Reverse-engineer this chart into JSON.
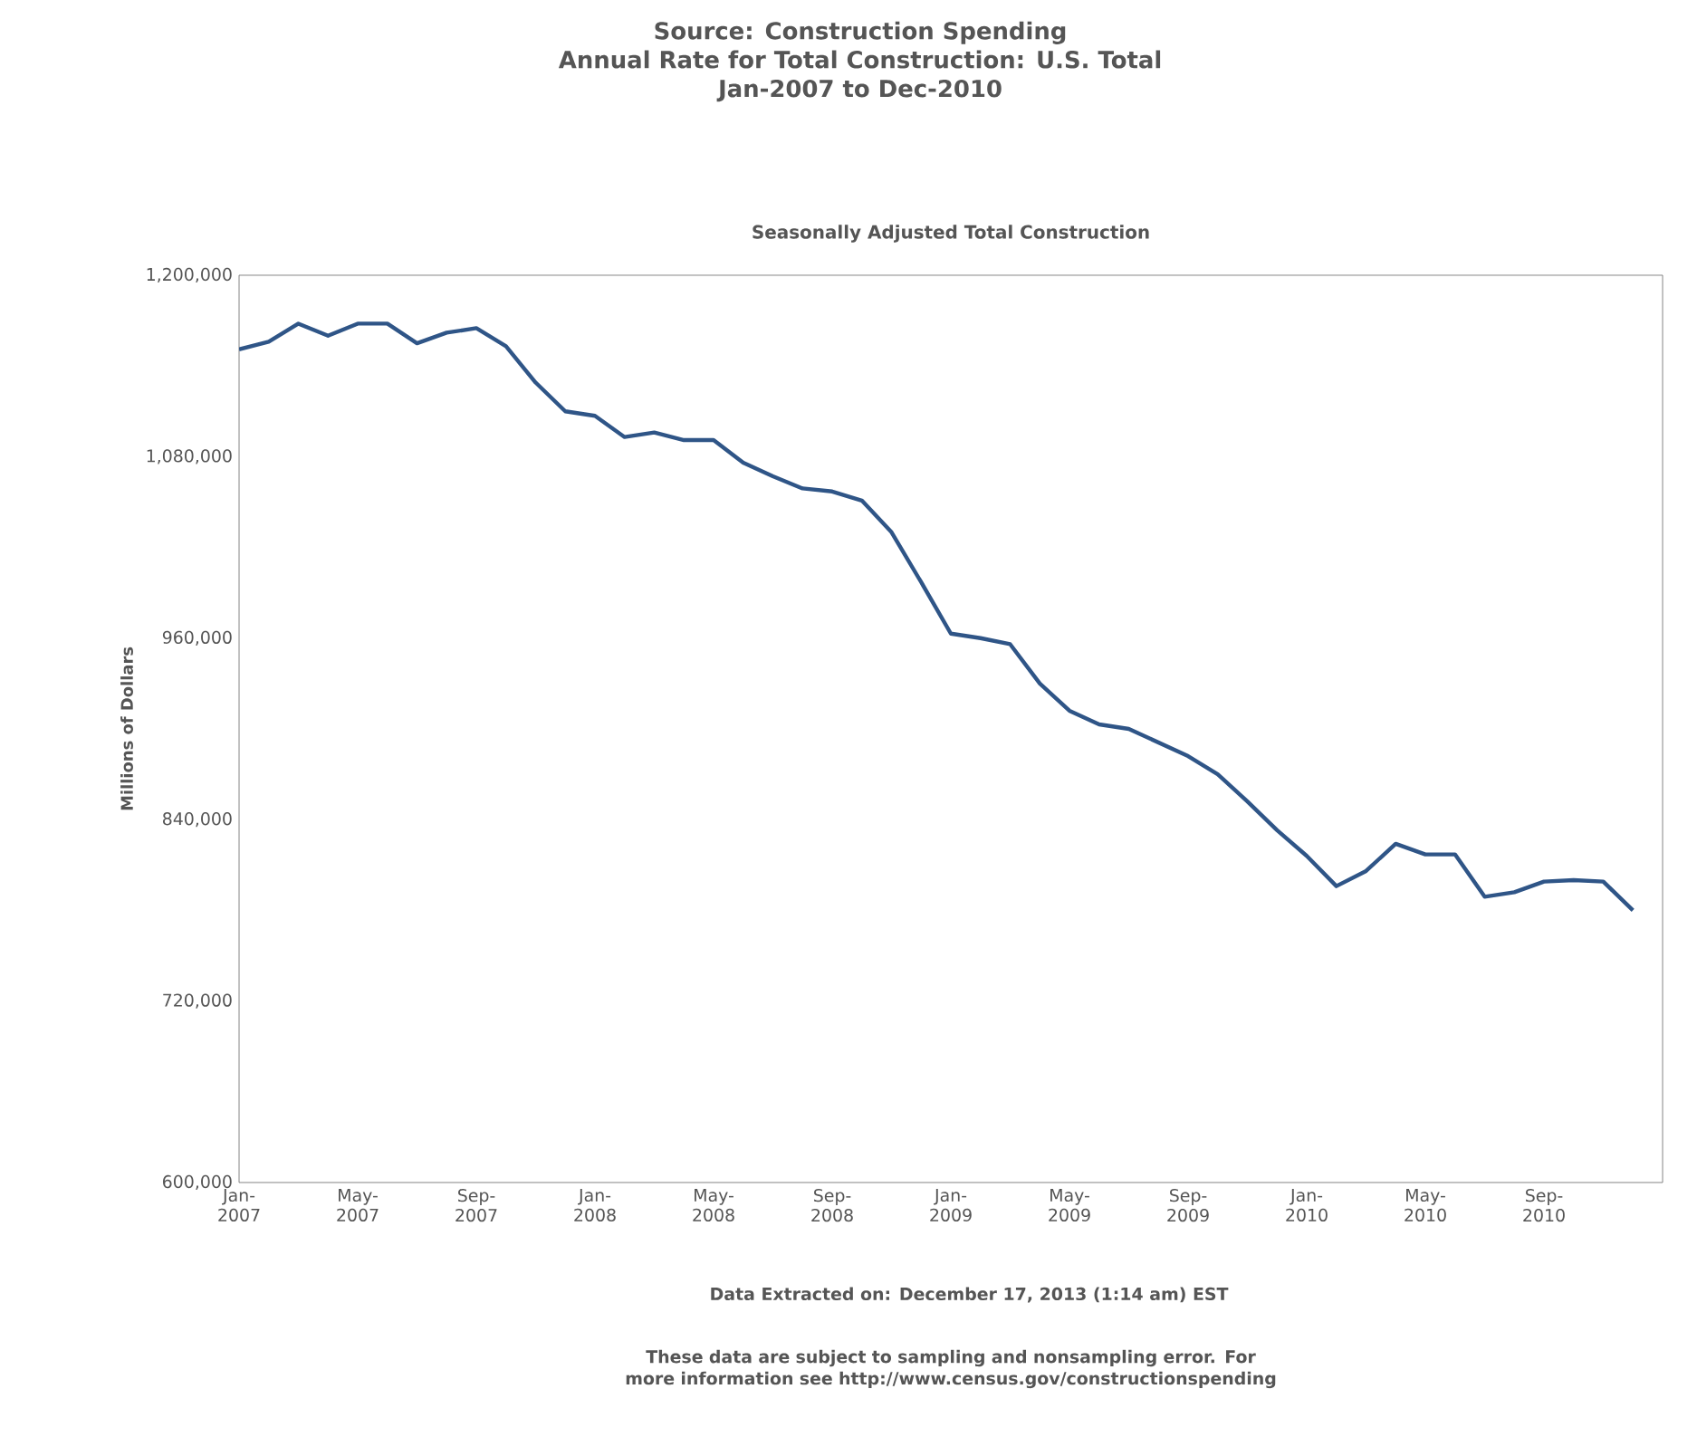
{
  "chart_data": {
    "type": "line",
    "title": "Source: Construction Spending",
    "subtitle": "Seasonally Adjusted Total Construction",
    "ylabel": "Millions of Dollars",
    "annotations": [
      "Annual Rate for Total Construction: U.S. Total",
      "Jan-2007 to Dec-2010",
      "Data Extracted on: December 17, 2013 (1:14 am) EST",
      "These data are subject to sampling and nonsampling error. For more information see http://www.census.gov/constructionspending"
    ],
    "x": [
      "2007-01",
      "2007-02",
      "2007-03",
      "2007-04",
      "2007-05",
      "2007-06",
      "2007-07",
      "2007-08",
      "2007-09",
      "2007-10",
      "2007-11",
      "2007-12",
      "2008-01",
      "2008-02",
      "2008-03",
      "2008-04",
      "2008-05",
      "2008-06",
      "2008-07",
      "2008-08",
      "2008-09",
      "2008-10",
      "2008-11",
      "2008-12",
      "2009-01",
      "2009-02",
      "2009-03",
      "2009-04",
      "2009-05",
      "2009-06",
      "2009-07",
      "2009-08",
      "2009-09",
      "2009-10",
      "2009-11",
      "2009-12",
      "2010-01",
      "2010-02",
      "2010-03",
      "2010-04",
      "2010-05",
      "2010-06",
      "2010-07",
      "2010-08",
      "2010-09",
      "2010-10",
      "2010-11",
      "2010-12"
    ],
    "series": [
      {
        "color": "#2f5587",
        "values": [
          1151000,
          1156000,
          1168000,
          1160000,
          1168000,
          1168000,
          1155000,
          1162000,
          1165000,
          1153000,
          1129000,
          1110000,
          1107000,
          1093000,
          1096000,
          1091000,
          1091000,
          1076000,
          1067000,
          1059000,
          1057000,
          1051000,
          1030000,
          997000,
          963000,
          960000,
          956000,
          930000,
          912000,
          903000,
          900000,
          891000,
          882000,
          870000,
          852000,
          833000,
          816000,
          796000,
          806000,
          824000,
          817000,
          817000,
          789000,
          792000,
          799000,
          800000,
          799000,
          780000
        ]
      }
    ],
    "xlim": [
      "2007-01",
      "2011-01"
    ],
    "ylim": [
      600000,
      1200000
    ],
    "xticks": [
      {
        "value": "2007-01",
        "label": "Jan-2007"
      },
      {
        "value": "2007-05",
        "label": "May-2007"
      },
      {
        "value": "2007-09",
        "label": "Sep-2007"
      },
      {
        "value": "2008-01",
        "label": "Jan-2008"
      },
      {
        "value": "2008-05",
        "label": "May-2008"
      },
      {
        "value": "2008-09",
        "label": "Sep-2008"
      },
      {
        "value": "2009-01",
        "label": "Jan-2009"
      },
      {
        "value": "2009-05",
        "label": "May-2009"
      },
      {
        "value": "2009-09",
        "label": "Sep-2009"
      },
      {
        "value": "2010-01",
        "label": "Jan-2010"
      },
      {
        "value": "2010-05",
        "label": "May-2010"
      },
      {
        "value": "2010-09",
        "label": "Sep-2010"
      }
    ],
    "yticks": [
      {
        "value": 600000,
        "label": "600,000"
      },
      {
        "value": 720000,
        "label": "720,000"
      },
      {
        "value": 840000,
        "label": "840,000"
      },
      {
        "value": 960000,
        "label": "960,000"
      },
      {
        "value": 1080000,
        "label": "1,080,000"
      },
      {
        "value": 1200000,
        "label": "1,200,000"
      }
    ],
    "grid": false,
    "marker": "none",
    "line_style": "solid"
  }
}
